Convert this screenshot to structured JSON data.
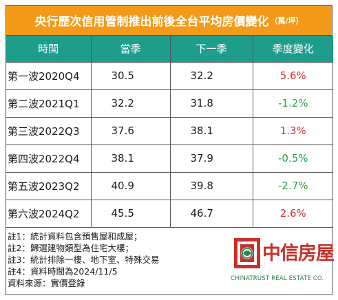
{
  "title": {
    "main": "央行歷次信用管制推出前後全台平均房價變化",
    "unit": "（萬/坪）"
  },
  "table": {
    "headers": [
      "時間",
      "當季",
      "下一季",
      "季度變化"
    ],
    "rows": [
      {
        "wave": "第一波2020Q4",
        "current": "30.5",
        "next": "32.2",
        "change": "5.6%",
        "trend": "up"
      },
      {
        "wave": "第二波2021Q1",
        "current": "32.2",
        "next": "31.8",
        "change": "-1.2%",
        "trend": "down"
      },
      {
        "wave": "第三波2022Q3",
        "current": "37.6",
        "next": "38.1",
        "change": "1.3%",
        "trend": "up"
      },
      {
        "wave": "第四波2022Q4",
        "current": "38.1",
        "next": "37.9",
        "change": "-0.5%",
        "trend": "down"
      },
      {
        "wave": "第五波2023Q2",
        "current": "40.9",
        "next": "39.8",
        "change": "-2.7%",
        "trend": "down"
      },
      {
        "wave": "第六波2024Q2",
        "current": "45.5",
        "next": "46.7",
        "change": "2.6%",
        "trend": "up"
      }
    ]
  },
  "notes": [
    "註1：統計資料包含預售屋和成屋；",
    "註2：歸選建物類型為住宅大樓；",
    "註3：統計排除一樓、地下室、特殊交易",
    "註4：資料時間為2024/11/5",
    "資料來源：實價登錄"
  ],
  "logo": {
    "brand": "中信房屋",
    "english": "CHINATRUST REAL ESTATE CO."
  },
  "colors": {
    "title_bg": "#f39a1a",
    "header_bg": "#1e9d8b",
    "up": "#d0312d",
    "down": "#2e9e48"
  }
}
